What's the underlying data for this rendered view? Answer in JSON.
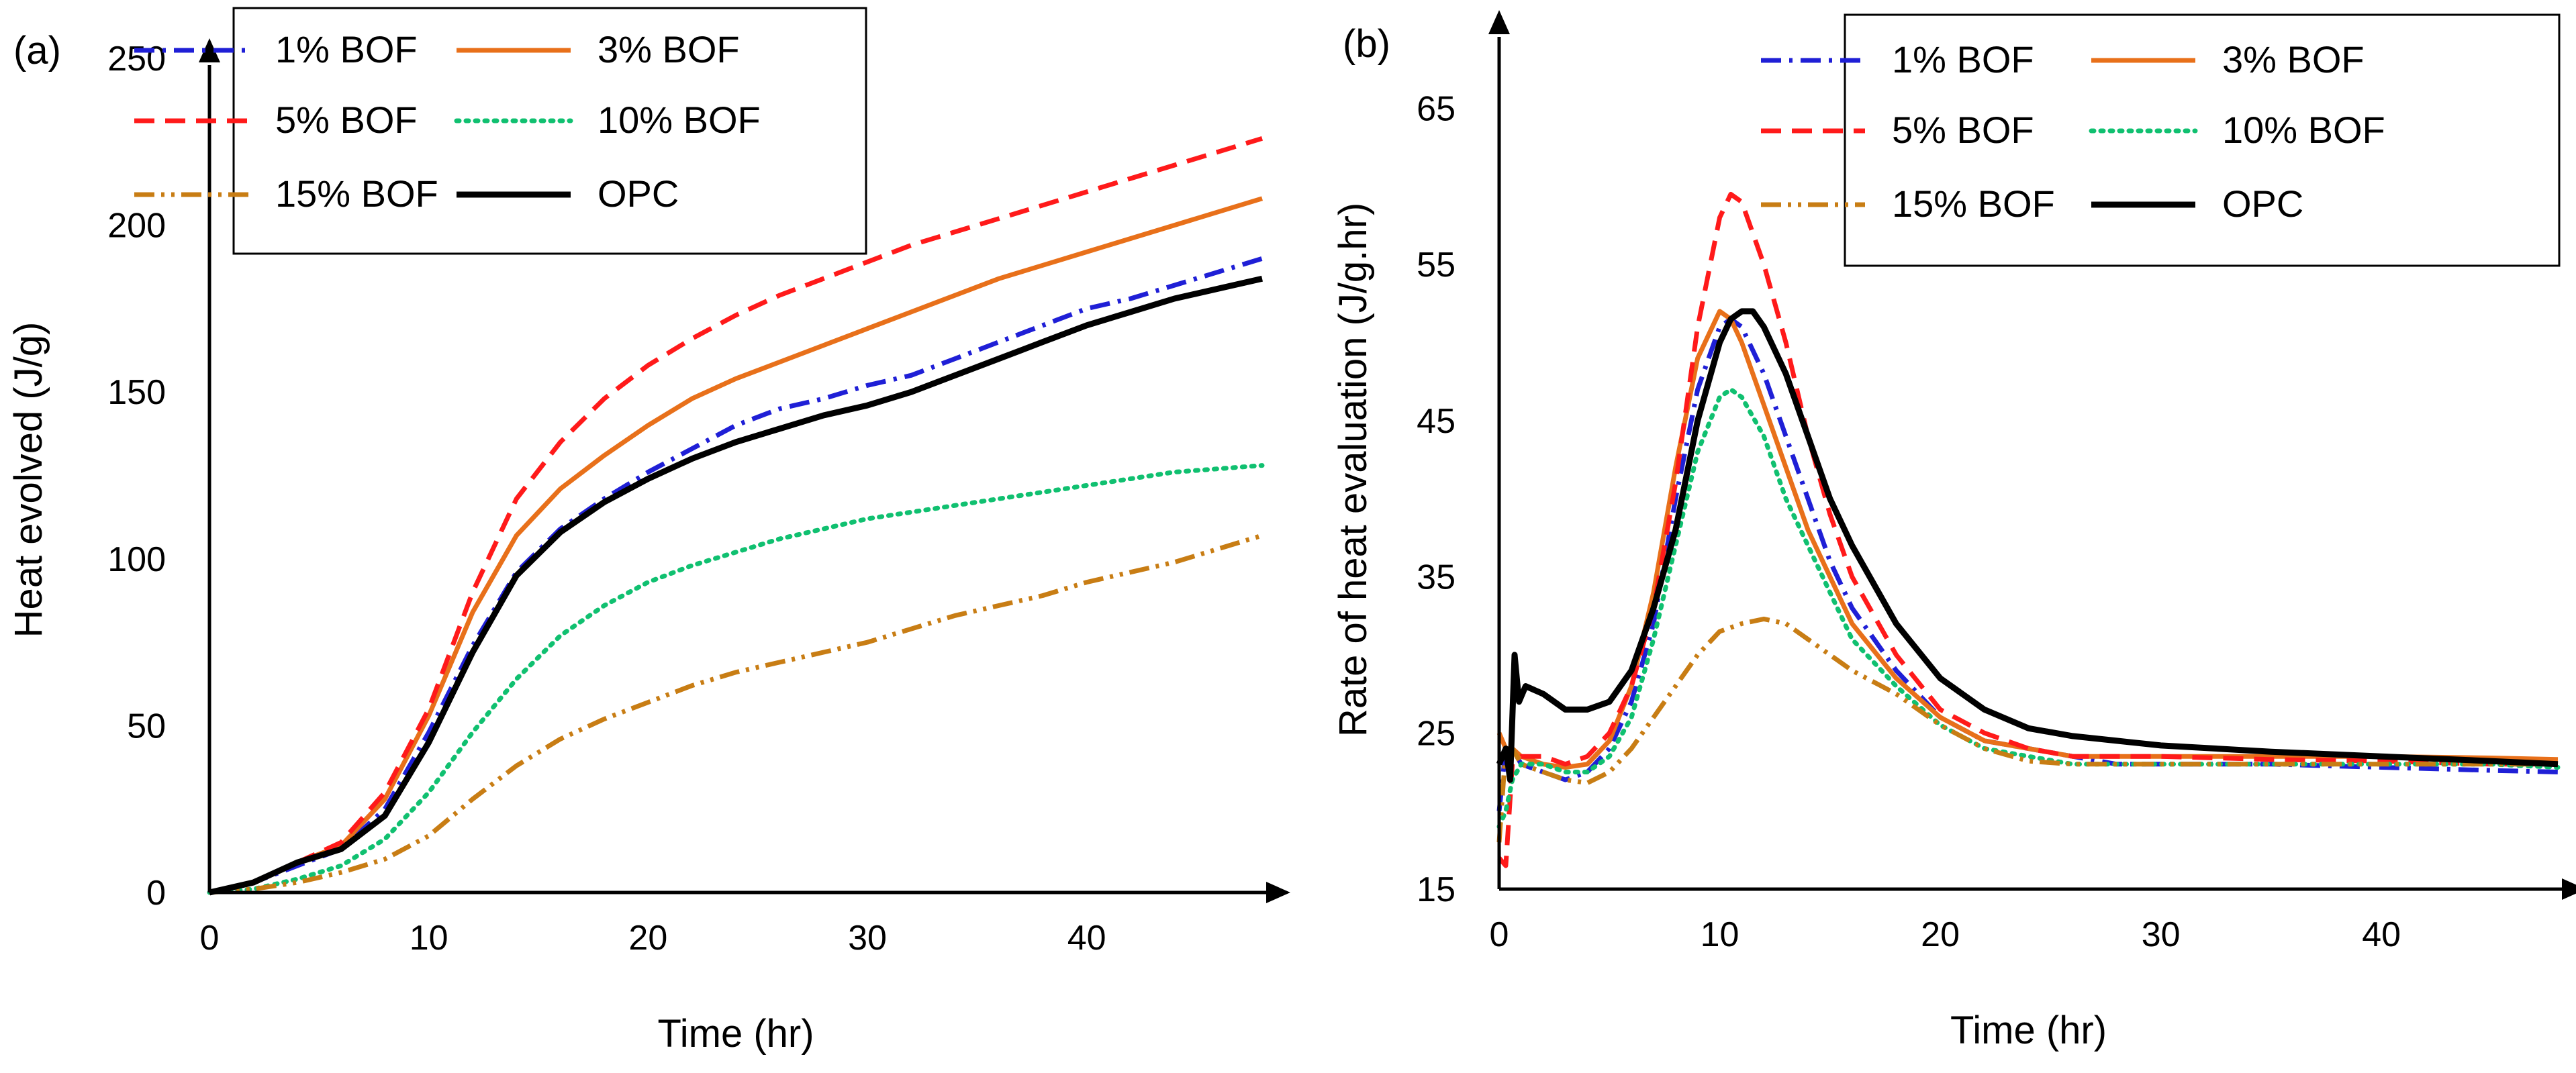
{
  "chart_data": [
    {
      "type": "line",
      "panel_label": "(a)",
      "title": "",
      "xlabel": "Time (hr)",
      "ylabel": "Heat evolved (J/g)",
      "xlim": [
        0,
        48
      ],
      "ylim": [
        0,
        250
      ],
      "xticks": [
        0,
        10,
        20,
        30,
        40
      ],
      "yticks": [
        0,
        50,
        100,
        150,
        200,
        250
      ],
      "grid": false,
      "legend_position": "top-left",
      "series": [
        {
          "name": "1% BOF",
          "color": "#1f1fd6",
          "style": "dashdot",
          "x": [
            0,
            2,
            4,
            6,
            8,
            10,
            12,
            14,
            16,
            18,
            20,
            22,
            24,
            26,
            28,
            30,
            32,
            34,
            36,
            38,
            40,
            42,
            44,
            46,
            48
          ],
          "y": [
            0,
            3,
            8,
            13,
            25,
            48,
            74,
            96,
            109,
            118,
            126,
            133,
            140,
            145,
            148,
            152,
            155,
            160,
            165,
            170,
            175,
            178,
            182,
            186,
            190
          ]
        },
        {
          "name": "3% BOF",
          "color": "#e8701a",
          "style": "solid",
          "x": [
            0,
            2,
            4,
            6,
            8,
            10,
            12,
            14,
            16,
            18,
            20,
            22,
            24,
            26,
            28,
            30,
            32,
            34,
            36,
            38,
            40,
            42,
            44,
            46,
            48
          ],
          "y": [
            0,
            3,
            9,
            14,
            28,
            53,
            84,
            107,
            121,
            131,
            140,
            148,
            154,
            159,
            164,
            169,
            174,
            179,
            184,
            188,
            192,
            196,
            200,
            204,
            208
          ]
        },
        {
          "name": "5% BOF",
          "color": "#ff1a1a",
          "style": "dashed",
          "x": [
            0,
            2,
            4,
            6,
            8,
            10,
            12,
            14,
            16,
            18,
            20,
            22,
            24,
            26,
            28,
            30,
            32,
            34,
            36,
            38,
            40,
            42,
            44,
            46,
            48
          ],
          "y": [
            0,
            3,
            9,
            15,
            30,
            55,
            90,
            118,
            135,
            148,
            158,
            166,
            173,
            179,
            184,
            189,
            194,
            198,
            202,
            206,
            210,
            214,
            218,
            222,
            226
          ]
        },
        {
          "name": "10% BOF",
          "color": "#10c070",
          "style": "dotted",
          "x": [
            0,
            2,
            4,
            6,
            8,
            10,
            12,
            14,
            16,
            18,
            20,
            22,
            24,
            26,
            28,
            30,
            32,
            34,
            36,
            38,
            40,
            42,
            44,
            46,
            48
          ],
          "y": [
            0,
            1,
            4,
            8,
            16,
            30,
            48,
            64,
            77,
            86,
            93,
            98,
            102,
            106,
            109,
            112,
            114,
            116,
            118,
            120,
            122,
            124,
            126,
            127,
            128
          ]
        },
        {
          "name": "15% BOF",
          "color": "#c87d14",
          "style": "dashdotdot",
          "x": [
            0,
            2,
            4,
            6,
            8,
            10,
            12,
            14,
            16,
            18,
            20,
            22,
            24,
            26,
            28,
            30,
            32,
            34,
            36,
            38,
            40,
            42,
            44,
            46,
            48
          ],
          "y": [
            0,
            1,
            3,
            6,
            10,
            17,
            28,
            38,
            46,
            52,
            57,
            62,
            66,
            69,
            72,
            75,
            79,
            83,
            86,
            89,
            93,
            96,
            99,
            103,
            107
          ]
        },
        {
          "name": "OPC",
          "color": "#000000",
          "style": "solid",
          "x": [
            0,
            2,
            4,
            6,
            8,
            10,
            12,
            14,
            16,
            18,
            20,
            22,
            24,
            26,
            28,
            30,
            32,
            34,
            36,
            38,
            40,
            42,
            44,
            46,
            48
          ],
          "y": [
            0,
            3,
            9,
            13,
            23,
            45,
            72,
            95,
            108,
            117,
            124,
            130,
            135,
            139,
            143,
            146,
            150,
            155,
            160,
            165,
            170,
            174,
            178,
            181,
            184
          ]
        }
      ]
    },
    {
      "type": "line",
      "panel_label": "(b)",
      "title": "",
      "xlabel": "Time (hr)",
      "ylabel": "Rate of heat evaluation (J/g.hr)",
      "xlim": [
        0,
        48
      ],
      "ylim": [
        15,
        70
      ],
      "xticks": [
        0,
        10,
        20,
        30,
        40
      ],
      "yticks": [
        15,
        25,
        35,
        45,
        55,
        65
      ],
      "grid": false,
      "legend_position": "top-right",
      "series": [
        {
          "name": "1% BOF",
          "color": "#1f1fd6",
          "style": "dashdot",
          "x": [
            0,
            0.3,
            0.6,
            1,
            2,
            3,
            4,
            5,
            6,
            7,
            8,
            9,
            10,
            10.5,
            11,
            12,
            13,
            14,
            15,
            16,
            18,
            20,
            22,
            24,
            26,
            28,
            30,
            35,
            40,
            45,
            48
          ],
          "y": [
            20,
            24,
            24,
            23,
            22.5,
            22,
            22.5,
            24,
            27,
            32,
            40,
            47,
            51,
            51.5,
            51,
            48,
            44,
            40,
            36,
            33,
            29,
            26,
            24.5,
            24,
            23.5,
            23,
            23,
            23,
            22.8,
            22.6,
            22.5
          ]
        },
        {
          "name": "3% BOF",
          "color": "#e8701a",
          "style": "solid",
          "x": [
            0,
            0.3,
            0.6,
            1,
            2,
            3,
            4,
            5,
            6,
            7,
            8,
            9,
            10,
            10.5,
            11,
            12,
            13,
            14,
            15,
            16,
            18,
            20,
            22,
            24,
            26,
            28,
            30,
            35,
            40,
            45,
            48
          ],
          "y": [
            25,
            24,
            24,
            23.5,
            23,
            22.8,
            23,
            24.5,
            28,
            34,
            42,
            49,
            52,
            51.5,
            50,
            46,
            42,
            38,
            35,
            32,
            28.5,
            26,
            24.5,
            24,
            23.5,
            23.5,
            23.5,
            23.5,
            23.5,
            23.4,
            23.3
          ]
        },
        {
          "name": "5% BOF",
          "color": "#ff1a1a",
          "style": "dashed",
          "x": [
            0,
            0.3,
            0.6,
            1,
            2,
            3,
            4,
            5,
            6,
            7,
            8,
            9,
            10,
            10.5,
            11,
            12,
            13,
            14,
            15,
            16,
            18,
            20,
            22,
            24,
            26,
            28,
            30,
            35,
            40,
            45,
            48
          ],
          "y": [
            17,
            16.5,
            23,
            23.5,
            23.5,
            23,
            23.5,
            25,
            28,
            33,
            41,
            51,
            58,
            59.5,
            59,
            55,
            50,
            44,
            39,
            35,
            30,
            26.5,
            25,
            24,
            23.5,
            23.5,
            23.5,
            23.3,
            23.2,
            23,
            23
          ]
        },
        {
          "name": "10% BOF",
          "color": "#10c070",
          "style": "dotted",
          "x": [
            0,
            0.3,
            0.6,
            1,
            2,
            3,
            4,
            5,
            6,
            7,
            8,
            9,
            10,
            10.5,
            11,
            12,
            13,
            14,
            15,
            16,
            18,
            20,
            22,
            24,
            26,
            28,
            30,
            35,
            40,
            45,
            48
          ],
          "y": [
            19,
            20,
            22,
            23,
            23,
            22.5,
            22.5,
            23.5,
            26,
            31,
            37,
            43,
            46.5,
            47,
            46.5,
            44,
            40,
            37,
            34,
            31,
            28,
            25.5,
            24,
            23.5,
            23,
            23,
            23,
            23,
            23,
            23,
            22.8
          ]
        },
        {
          "name": "15% BOF",
          "color": "#c87d14",
          "style": "dashdotdot",
          "x": [
            0,
            0.3,
            0.6,
            1,
            2,
            3,
            4,
            5,
            6,
            7,
            8,
            9,
            10,
            11,
            12,
            13,
            14,
            15,
            16,
            18,
            20,
            22,
            24,
            26,
            28,
            30,
            35,
            40,
            45,
            48
          ],
          "y": [
            18,
            24,
            24,
            23,
            22.5,
            22,
            21.8,
            22.5,
            24,
            26,
            28,
            30,
            31.5,
            32,
            32.3,
            32,
            31,
            30,
            29,
            27.5,
            25.5,
            24,
            23.2,
            23,
            23,
            23,
            23,
            23,
            23,
            23
          ]
        },
        {
          "name": "OPC",
          "color": "#000000",
          "style": "solid",
          "x": [
            0,
            0.3,
            0.5,
            0.7,
            0.9,
            1.2,
            2,
            3,
            4,
            5,
            6,
            7,
            8,
            9,
            10,
            10.5,
            11,
            11.5,
            12,
            13,
            14,
            15,
            16,
            18,
            20,
            22,
            24,
            26,
            28,
            30,
            35,
            40,
            45,
            48
          ],
          "y": [
            23,
            24,
            22,
            30,
            27,
            28,
            27.5,
            26.5,
            26.5,
            27,
            29,
            33,
            38,
            45,
            50,
            51.5,
            52,
            52,
            51,
            48,
            44,
            40,
            37,
            32,
            28.5,
            26.5,
            25.3,
            24.8,
            24.5,
            24.2,
            23.8,
            23.5,
            23.2,
            23
          ]
        }
      ]
    }
  ]
}
